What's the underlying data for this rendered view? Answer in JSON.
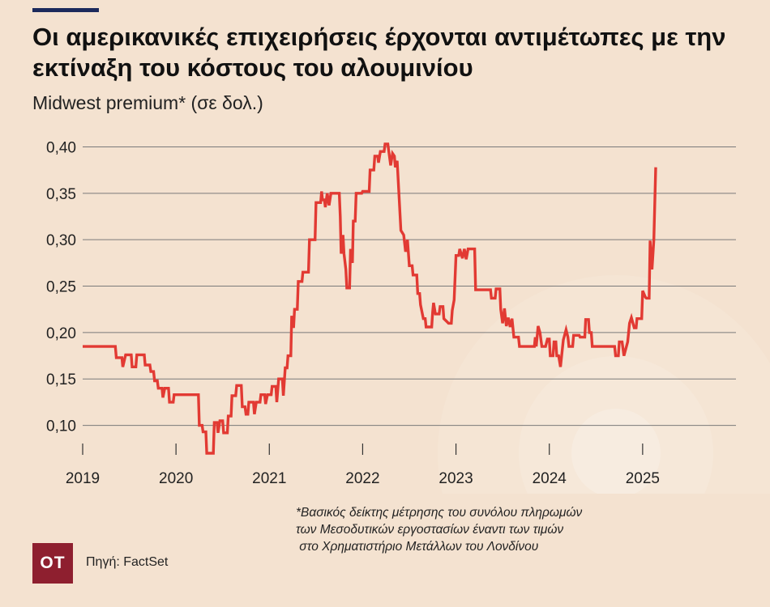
{
  "header": {
    "title": "Οι αμερικανικές επιχειρήσεις έρχονται αντιμέτωπες με την εκτίναξη του κόστους του αλουμινίου",
    "subtitle": "Midwest premium* (σε δολ.)"
  },
  "footnote": {
    "lines": [
      "*Βασικός δείκτης μέτρησης του συνόλου πληρωμών",
      "των Μεσοδυτικών εργοστασίων έναντι των τιμών",
      " στο Χρηματιστήριο Μετάλλων του Λονδίνου"
    ]
  },
  "source": "Πηγή: FactSet",
  "logo": "OT",
  "colors": {
    "background": "#f4e2d0",
    "line": "#e23a33",
    "grid": "#7a7a7a",
    "logo_bg": "#8e1f2f",
    "accent_rule": "#1c2a5c"
  },
  "chart_data": {
    "type": "line",
    "title": "Οι αμερικανικές επιχειρήσεις έρχονται αντιμέτωπες με την εκτίναξη του κόστους του αλουμινίου",
    "subtitle": "Midwest premium* (σε δολ.)",
    "xlabel": "",
    "ylabel": "",
    "x_ticks": [
      "2019",
      "2020",
      "2021",
      "2022",
      "2023",
      "2024",
      "2025"
    ],
    "y_ticks": [
      "0,10",
      "0,15",
      "0,20",
      "0,25",
      "0,30",
      "0,35",
      "0,40"
    ],
    "y_tick_values": [
      0.1,
      0.15,
      0.2,
      0.25,
      0.3,
      0.35,
      0.4
    ],
    "ylim": [
      0.07,
      0.41
    ],
    "xlim": [
      2019.0,
      2026.0
    ],
    "grid": "horizontal",
    "series": [
      {
        "values": [
          [
            2019.0,
            0.185
          ],
          [
            2019.35,
            0.185
          ],
          [
            2019.36,
            0.173
          ],
          [
            2019.42,
            0.173
          ],
          [
            2019.43,
            0.163
          ],
          [
            2019.46,
            0.176
          ],
          [
            2019.52,
            0.176
          ],
          [
            2019.53,
            0.163
          ],
          [
            2019.57,
            0.163
          ],
          [
            2019.58,
            0.176
          ],
          [
            2019.66,
            0.176
          ],
          [
            2019.67,
            0.165
          ],
          [
            2019.72,
            0.165
          ],
          [
            2019.73,
            0.158
          ],
          [
            2019.76,
            0.158
          ],
          [
            2019.77,
            0.148
          ],
          [
            2019.8,
            0.148
          ],
          [
            2019.81,
            0.14
          ],
          [
            2019.85,
            0.14
          ],
          [
            2019.86,
            0.13
          ],
          [
            2019.88,
            0.14
          ],
          [
            2019.92,
            0.14
          ],
          [
            2019.93,
            0.125
          ],
          [
            2019.97,
            0.125
          ],
          [
            2019.98,
            0.133
          ],
          [
            2020.24,
            0.133
          ],
          [
            2020.25,
            0.1
          ],
          [
            2020.28,
            0.1
          ],
          [
            2020.29,
            0.093
          ],
          [
            2020.32,
            0.093
          ],
          [
            2020.33,
            0.07
          ],
          [
            2020.4,
            0.07
          ],
          [
            2020.41,
            0.103
          ],
          [
            2020.44,
            0.103
          ],
          [
            2020.45,
            0.092
          ],
          [
            2020.47,
            0.105
          ],
          [
            2020.5,
            0.105
          ],
          [
            2020.51,
            0.092
          ],
          [
            2020.55,
            0.092
          ],
          [
            2020.56,
            0.11
          ],
          [
            2020.59,
            0.11
          ],
          [
            2020.6,
            0.132
          ],
          [
            2020.64,
            0.132
          ],
          [
            2020.65,
            0.143
          ],
          [
            2020.7,
            0.143
          ],
          [
            2020.71,
            0.12
          ],
          [
            2020.74,
            0.12
          ],
          [
            2020.75,
            0.112
          ],
          [
            2020.77,
            0.112
          ],
          [
            2020.78,
            0.125
          ],
          [
            2020.83,
            0.125
          ],
          [
            2020.84,
            0.112
          ],
          [
            2020.86,
            0.125
          ],
          [
            2020.9,
            0.125
          ],
          [
            2020.91,
            0.133
          ],
          [
            2020.95,
            0.133
          ],
          [
            2020.96,
            0.123
          ],
          [
            2020.98,
            0.133
          ],
          [
            2021.02,
            0.133
          ],
          [
            2021.03,
            0.142
          ],
          [
            2021.07,
            0.142
          ],
          [
            2021.08,
            0.125
          ],
          [
            2021.1,
            0.15
          ],
          [
            2021.14,
            0.15
          ],
          [
            2021.15,
            0.132
          ],
          [
            2021.17,
            0.162
          ],
          [
            2021.19,
            0.162
          ],
          [
            2021.2,
            0.175
          ],
          [
            2021.23,
            0.175
          ],
          [
            2021.24,
            0.218
          ],
          [
            2021.26,
            0.205
          ],
          [
            2021.27,
            0.225
          ],
          [
            2021.3,
            0.225
          ],
          [
            2021.31,
            0.255
          ],
          [
            2021.35,
            0.255
          ],
          [
            2021.36,
            0.265
          ],
          [
            2021.42,
            0.265
          ],
          [
            2021.43,
            0.3
          ],
          [
            2021.49,
            0.3
          ],
          [
            2021.5,
            0.34
          ],
          [
            2021.55,
            0.34
          ],
          [
            2021.56,
            0.352
          ],
          [
            2021.57,
            0.343
          ],
          [
            2021.59,
            0.343
          ],
          [
            2021.6,
            0.335
          ],
          [
            2021.62,
            0.35
          ],
          [
            2021.64,
            0.337
          ],
          [
            2021.66,
            0.35
          ],
          [
            2021.75,
            0.35
          ],
          [
            2021.76,
            0.325
          ],
          [
            2021.77,
            0.285
          ],
          [
            2021.79,
            0.305
          ],
          [
            2021.8,
            0.285
          ],
          [
            2021.82,
            0.268
          ],
          [
            2021.83,
            0.248
          ],
          [
            2021.86,
            0.248
          ],
          [
            2021.87,
            0.29
          ],
          [
            2021.89,
            0.275
          ],
          [
            2021.9,
            0.32
          ],
          [
            2021.92,
            0.32
          ],
          [
            2021.93,
            0.35
          ],
          [
            2021.99,
            0.35
          ],
          [
            2022.0,
            0.352
          ],
          [
            2022.07,
            0.352
          ],
          [
            2022.08,
            0.375
          ],
          [
            2022.12,
            0.375
          ],
          [
            2022.13,
            0.39
          ],
          [
            2022.16,
            0.39
          ],
          [
            2022.17,
            0.383
          ],
          [
            2022.19,
            0.395
          ],
          [
            2022.23,
            0.395
          ],
          [
            2022.24,
            0.403
          ],
          [
            2022.27,
            0.403
          ],
          [
            2022.28,
            0.395
          ],
          [
            2022.3,
            0.38
          ],
          [
            2022.32,
            0.393
          ],
          [
            2022.34,
            0.39
          ],
          [
            2022.35,
            0.378
          ],
          [
            2022.37,
            0.385
          ],
          [
            2022.41,
            0.31
          ],
          [
            2022.44,
            0.305
          ],
          [
            2022.46,
            0.287
          ],
          [
            2022.48,
            0.3
          ],
          [
            2022.5,
            0.272
          ],
          [
            2022.53,
            0.272
          ],
          [
            2022.54,
            0.262
          ],
          [
            2022.58,
            0.262
          ],
          [
            2022.59,
            0.242
          ],
          [
            2022.61,
            0.242
          ],
          [
            2022.62,
            0.23
          ],
          [
            2022.65,
            0.215
          ],
          [
            2022.67,
            0.215
          ],
          [
            2022.68,
            0.206
          ],
          [
            2022.74,
            0.206
          ],
          [
            2022.75,
            0.222
          ],
          [
            2022.76,
            0.232
          ],
          [
            2022.78,
            0.22
          ],
          [
            2022.82,
            0.22
          ],
          [
            2022.83,
            0.228
          ],
          [
            2022.86,
            0.228
          ],
          [
            2022.87,
            0.215
          ],
          [
            2022.9,
            0.212
          ],
          [
            2022.92,
            0.21
          ],
          [
            2022.95,
            0.21
          ],
          [
            2022.96,
            0.224
          ],
          [
            2022.98,
            0.235
          ],
          [
            2023.0,
            0.283
          ],
          [
            2023.03,
            0.283
          ],
          [
            2023.04,
            0.29
          ],
          [
            2023.07,
            0.28
          ],
          [
            2023.09,
            0.29
          ],
          [
            2023.11,
            0.279
          ],
          [
            2023.13,
            0.29
          ],
          [
            2023.2,
            0.29
          ],
          [
            2023.21,
            0.246
          ],
          [
            2023.37,
            0.246
          ],
          [
            2023.38,
            0.237
          ],
          [
            2023.42,
            0.237
          ],
          [
            2023.43,
            0.247
          ],
          [
            2023.47,
            0.247
          ],
          [
            2023.48,
            0.225
          ],
          [
            2023.5,
            0.21
          ],
          [
            2023.52,
            0.226
          ],
          [
            2023.54,
            0.207
          ],
          [
            2023.56,
            0.216
          ],
          [
            2023.58,
            0.206
          ],
          [
            2023.6,
            0.215
          ],
          [
            2023.62,
            0.195
          ],
          [
            2023.67,
            0.195
          ],
          [
            2023.68,
            0.185
          ],
          [
            2023.84,
            0.185
          ],
          [
            2023.85,
            0.195
          ],
          [
            2023.86,
            0.185
          ],
          [
            2023.88,
            0.207
          ],
          [
            2023.9,
            0.2
          ],
          [
            2023.92,
            0.185
          ],
          [
            2023.96,
            0.185
          ],
          [
            2023.98,
            0.193
          ],
          [
            2024.0,
            0.193
          ],
          [
            2024.01,
            0.175
          ],
          [
            2024.04,
            0.175
          ],
          [
            2024.05,
            0.19
          ],
          [
            2024.07,
            0.19
          ],
          [
            2024.08,
            0.175
          ],
          [
            2024.1,
            0.175
          ],
          [
            2024.12,
            0.163
          ],
          [
            2024.15,
            0.192
          ],
          [
            2024.18,
            0.203
          ],
          [
            2024.2,
            0.195
          ],
          [
            2024.21,
            0.185
          ],
          [
            2024.25,
            0.185
          ],
          [
            2024.26,
            0.197
          ],
          [
            2024.32,
            0.197
          ],
          [
            2024.33,
            0.195
          ],
          [
            2024.38,
            0.195
          ],
          [
            2024.39,
            0.214
          ],
          [
            2024.42,
            0.214
          ],
          [
            2024.43,
            0.2
          ],
          [
            2024.45,
            0.2
          ],
          [
            2024.46,
            0.185
          ],
          [
            2024.7,
            0.185
          ],
          [
            2024.71,
            0.175
          ],
          [
            2024.74,
            0.175
          ],
          [
            2024.75,
            0.19
          ],
          [
            2024.78,
            0.19
          ],
          [
            2024.8,
            0.175
          ],
          [
            2024.84,
            0.19
          ],
          [
            2024.86,
            0.21
          ],
          [
            2024.88,
            0.216
          ],
          [
            2024.91,
            0.205
          ],
          [
            2024.93,
            0.205
          ],
          [
            2024.94,
            0.215
          ],
          [
            2024.99,
            0.215
          ],
          [
            2025.0,
            0.245
          ],
          [
            2025.03,
            0.238
          ],
          [
            2025.04,
            0.237
          ],
          [
            2025.07,
            0.237
          ],
          [
            2025.08,
            0.299
          ],
          [
            2025.1,
            0.268
          ],
          [
            2025.12,
            0.3
          ],
          [
            2025.14,
            0.378
          ]
        ]
      }
    ]
  }
}
